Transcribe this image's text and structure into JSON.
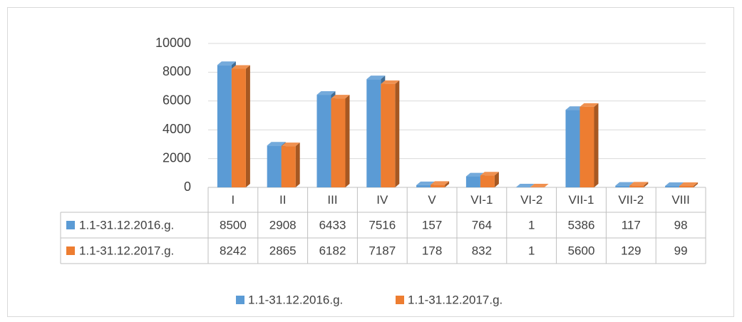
{
  "chart_data": {
    "type": "bar",
    "categories": [
      "I",
      "II",
      "III",
      "IV",
      "V",
      "VI-1",
      "VI-2",
      "VII-1",
      "VII-2",
      "VIII"
    ],
    "series": [
      {
        "name": "1.1-31.12.2016.g.",
        "color": "#5b9bd5",
        "values": [
          8500,
          2908,
          6433,
          7516,
          157,
          764,
          1,
          5386,
          117,
          98
        ]
      },
      {
        "name": "1.1-31.12.2017.g.",
        "color": "#ed7d31",
        "values": [
          8242,
          2865,
          6182,
          7187,
          178,
          832,
          1,
          5600,
          129,
          99
        ]
      }
    ],
    "ylim": [
      0,
      10000
    ],
    "yticks": [
      0,
      2000,
      4000,
      6000,
      8000,
      10000
    ],
    "grid": true,
    "legend": "bottom"
  }
}
